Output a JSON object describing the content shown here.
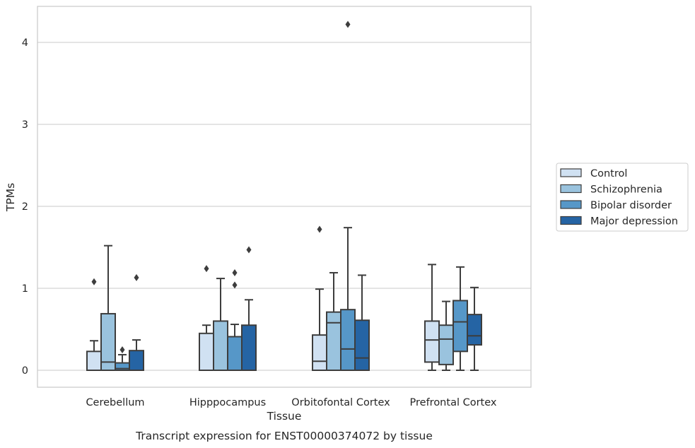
{
  "chart_data": {
    "type": "box",
    "caption": "Transcript expression for ENST00000374072 by tissue",
    "xlabel": "Tissue",
    "ylabel": "TPMs",
    "ylim": [
      -0.2,
      4.45
    ],
    "yticks": [
      0,
      1,
      2,
      3,
      4
    ],
    "grid": "horizontal",
    "legend_position": "right",
    "categories": [
      "Cerebellum",
      "Hipppocampus",
      "Orbitofontal Cortex",
      "Prefrontal Cortex"
    ],
    "series": [
      {
        "name": "Control",
        "color": "#d0e1f2",
        "boxes": [
          {
            "q1": 0.0,
            "median": 0.0,
            "q3": 0.23,
            "whislo": 0.0,
            "whishi": 0.36,
            "fliers": [
              1.08
            ]
          },
          {
            "q1": 0.0,
            "median": 0.0,
            "q3": 0.45,
            "whislo": 0.0,
            "whishi": 0.55,
            "fliers": [
              1.24
            ]
          },
          {
            "q1": 0.0,
            "median": 0.11,
            "q3": 0.43,
            "whislo": 0.0,
            "whishi": 0.99,
            "fliers": [
              1.72
            ]
          },
          {
            "q1": 0.1,
            "median": 0.37,
            "q3": 0.6,
            "whislo": 0.0,
            "whishi": 1.29,
            "fliers": []
          }
        ]
      },
      {
        "name": "Schizophrenia",
        "color": "#9ac3de",
        "boxes": [
          {
            "q1": 0.0,
            "median": 0.1,
            "q3": 0.69,
            "whislo": 0.0,
            "whishi": 1.52,
            "fliers": []
          },
          {
            "q1": 0.0,
            "median": 0.0,
            "q3": 0.6,
            "whislo": 0.0,
            "whishi": 1.12,
            "fliers": []
          },
          {
            "q1": 0.0,
            "median": 0.58,
            "q3": 0.71,
            "whislo": 0.0,
            "whishi": 1.19,
            "fliers": []
          },
          {
            "q1": 0.07,
            "median": 0.38,
            "q3": 0.55,
            "whislo": 0.0,
            "whishi": 0.84,
            "fliers": []
          }
        ]
      },
      {
        "name": "Bipolar disorder",
        "color": "#5697c8",
        "boxes": [
          {
            "q1": 0.0,
            "median": 0.02,
            "q3": 0.09,
            "whislo": 0.0,
            "whishi": 0.19,
            "fliers": [
              0.25
            ]
          },
          {
            "q1": 0.0,
            "median": 0.0,
            "q3": 0.41,
            "whislo": 0.0,
            "whishi": 0.56,
            "fliers": [
              1.04,
              1.19
            ]
          },
          {
            "q1": 0.0,
            "median": 0.26,
            "q3": 0.74,
            "whislo": 0.0,
            "whishi": 1.74,
            "fliers": [
              4.22
            ]
          },
          {
            "q1": 0.23,
            "median": 0.59,
            "q3": 0.85,
            "whislo": 0.0,
            "whishi": 1.26,
            "fliers": []
          }
        ]
      },
      {
        "name": "Major depression",
        "color": "#2564a4",
        "boxes": [
          {
            "q1": 0.0,
            "median": 0.0,
            "q3": 0.24,
            "whislo": 0.0,
            "whishi": 0.37,
            "fliers": [
              1.13
            ]
          },
          {
            "q1": 0.0,
            "median": 0.0,
            "q3": 0.55,
            "whislo": 0.0,
            "whishi": 0.86,
            "fliers": [
              1.47
            ]
          },
          {
            "q1": 0.0,
            "median": 0.15,
            "q3": 0.61,
            "whislo": 0.0,
            "whishi": 1.16,
            "fliers": []
          },
          {
            "q1": 0.31,
            "median": 0.42,
            "q3": 0.68,
            "whislo": 0.0,
            "whishi": 1.01,
            "fliers": []
          }
        ]
      }
    ]
  }
}
